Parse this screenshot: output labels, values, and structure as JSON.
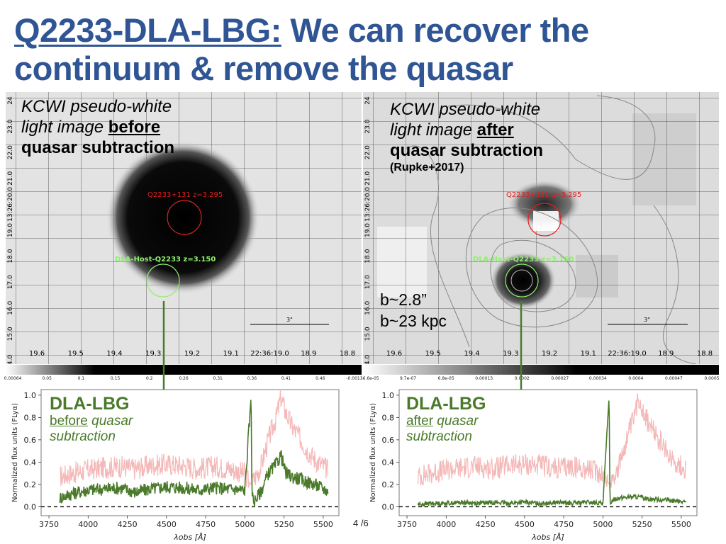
{
  "slide": {
    "title_link": "Q2233-DLA-LBG:",
    "title_rest": " We can recover the continuum & remove the quasar",
    "page_number": "4 /6"
  },
  "left_image": {
    "caption_line1": "KCWI pseudo-white",
    "caption_line2_a": "light image ",
    "caption_line2_b": "before",
    "caption_line3": "quasar subtraction",
    "quasar_label": "Q2233+131 z=3.295",
    "dla_label": "DLA-Host-Q2233 z=3.150",
    "scalebar_label": "3\"",
    "ra_ticks": [
      "19.6",
      "19.5",
      "19.4",
      "19.3",
      "19.2",
      "19.1",
      "22:36:19.0",
      "18.9",
      "18.8"
    ],
    "dec_ticks": [
      "24",
      "23.0",
      "22.0",
      "21.0",
      "13:26:20.0",
      "19.0",
      "18.0",
      "17.0",
      "16.0",
      "15.0",
      "4.0"
    ],
    "colorbar_ticks": [
      "0.00064",
      "0.05",
      "0.1",
      "0.15",
      "0.2",
      "0.26",
      "0.31",
      "0.36",
      "0.41",
      "0.46",
      "-0.0013"
    ]
  },
  "right_image": {
    "caption_line1": "KCWI pseudo-white",
    "caption_line2_a": "light image ",
    "caption_line2_b": "after",
    "caption_line3": "quasar subtraction",
    "caption_line4": "(Rupke+2017)",
    "quasar_label": "Q2233+131 z=3.295",
    "dla_label": "DLA-Host-Q2233 z=3.150",
    "scalebar_label": "3\"",
    "impact_angle": "b~2.8”",
    "impact_kpc": "b~23 kpc",
    "ra_ticks": [
      "19.6",
      "19.5",
      "19.4",
      "19.3",
      "19.2",
      "19.1",
      "22:36:19.0",
      "18.9",
      "18.8"
    ],
    "dec_ticks": [
      "24",
      "23.0",
      "22.0",
      "21.0",
      "13:26:20.0",
      "19.0",
      "18.0",
      "17.0",
      "16.0",
      "15.0",
      "4.0"
    ],
    "colorbar_ticks": [
      "-6.6e-05",
      "9.7e-07",
      "6.8e-05",
      "0.00013",
      "0.0002",
      "0.00027",
      "0.00034",
      "0.0004",
      "0.00047",
      "0.0005"
    ]
  },
  "colors": {
    "title": "#2f5594",
    "quasar_circle": "#e02020",
    "dla_circle": "#90ee70",
    "spectrum_green": "#4a7a2a",
    "spectrum_pink": "#f4b8b8",
    "arrow": "#4a7a2a"
  },
  "chart_data": [
    {
      "type": "line",
      "label_main": "DLA-LBG",
      "label_sub1_u": "before",
      "label_sub1_rest": " quasar",
      "label_sub2": "subtraction",
      "xlabel": "λobs [Å]",
      "ylabel": "Normalized flux units (FLyα)",
      "xlim": [
        3700,
        5600
      ],
      "ylim": [
        -0.08,
        1.05
      ],
      "xticks": [
        "3750",
        "4000",
        "4250",
        "4500",
        "4750",
        "5000",
        "5250",
        "5500"
      ],
      "yticks": [
        "0.0",
        "0.2",
        "0.4",
        "0.6",
        "0.8",
        "1.0"
      ],
      "series": [
        {
          "values_x": [
            3820,
            3900,
            4000,
            4100,
            4200,
            4300,
            4400,
            4500,
            4600,
            4700,
            4800,
            4900,
            5000,
            5040,
            5100,
            5150,
            5200,
            5230,
            5260,
            5300,
            5350,
            5400,
            5450,
            5530
          ],
          "values_y": [
            0.27,
            0.3,
            0.33,
            0.35,
            0.36,
            0.34,
            0.37,
            0.38,
            0.37,
            0.34,
            0.36,
            0.34,
            0.3,
            0.2,
            0.35,
            0.6,
            0.8,
            0.98,
            0.85,
            0.72,
            0.62,
            0.5,
            0.42,
            0.33
          ]
        },
        {
          "values_x": [
            3820,
            3900,
            4000,
            4100,
            4200,
            4300,
            4400,
            4500,
            4600,
            4700,
            4800,
            4900,
            5000,
            5040,
            5045,
            5060,
            5100,
            5150,
            5200,
            5230,
            5260,
            5300,
            5350,
            5400,
            5450,
            5530
          ],
          "values_y": [
            0.08,
            0.12,
            0.15,
            0.16,
            0.17,
            0.13,
            0.16,
            0.18,
            0.17,
            0.15,
            0.17,
            0.16,
            0.15,
            1.0,
            0.1,
            0.05,
            0.13,
            0.3,
            0.38,
            0.47,
            0.3,
            0.27,
            0.25,
            0.22,
            0.2,
            0.14
          ]
        }
      ]
    },
    {
      "type": "line",
      "label_main": "DLA-LBG",
      "label_sub1_u": "after",
      "label_sub1_rest": " quasar",
      "label_sub2": "subtraction",
      "xlabel": "λobs [Å]",
      "ylabel": "Normalized flux units (FLyα)",
      "xlim": [
        3700,
        5600
      ],
      "ylim": [
        -0.08,
        1.05
      ],
      "xticks": [
        "3750",
        "4000",
        "4250",
        "4500",
        "4750",
        "5000",
        "5250",
        "5500"
      ],
      "yticks": [
        "0.0",
        "0.2",
        "0.4",
        "0.6",
        "0.8",
        "1.0"
      ],
      "series": [
        {
          "values_x": [
            3820,
            3900,
            4000,
            4100,
            4200,
            4300,
            4400,
            4500,
            4600,
            4700,
            4800,
            4900,
            5000,
            5040,
            5100,
            5150,
            5200,
            5230,
            5260,
            5300,
            5350,
            5400,
            5450,
            5530
          ],
          "values_y": [
            0.27,
            0.3,
            0.33,
            0.35,
            0.36,
            0.34,
            0.37,
            0.38,
            0.37,
            0.34,
            0.36,
            0.34,
            0.3,
            0.2,
            0.35,
            0.6,
            0.8,
            0.98,
            0.85,
            0.72,
            0.62,
            0.5,
            0.42,
            0.33
          ]
        },
        {
          "values_x": [
            3820,
            3900,
            4000,
            4100,
            4200,
            4300,
            4400,
            4500,
            4600,
            4700,
            4800,
            4900,
            5000,
            5040,
            5045,
            5060,
            5100,
            5200,
            5300,
            5400,
            5530
          ],
          "values_y": [
            0.02,
            0.03,
            0.03,
            0.04,
            0.03,
            0.04,
            0.03,
            0.04,
            0.03,
            0.04,
            0.03,
            0.04,
            0.03,
            1.0,
            0.02,
            0.06,
            0.08,
            0.09,
            0.07,
            0.06,
            0.04
          ]
        }
      ]
    }
  ]
}
